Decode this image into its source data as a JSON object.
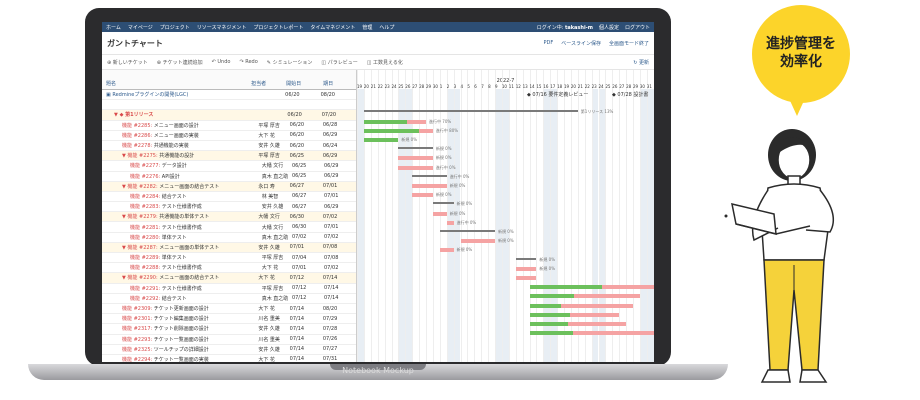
{
  "mockup_label": "Notebook Mockup",
  "bubble": {
    "line1": "進捗管理を",
    "line2": "効率化"
  },
  "topbar": {
    "items": [
      "ホーム",
      "マイページ",
      "プロジェクト",
      "リソースマネジメント",
      "プロジェクトレポート",
      "タイムマネジメント",
      "管理",
      "ヘルプ"
    ],
    "login_label": "ログイン中:",
    "user": "takashi-m",
    "settings": "個人設定",
    "logout": "ログアウト"
  },
  "title": "ガントチャート",
  "title_actions": [
    "PDF",
    "ベースライン保存",
    "全画面モード終了"
  ],
  "toolbar": [
    "新しいチケット",
    "チケット連続追加",
    "Undo",
    "Redo",
    "シミュレーション",
    "パラレビュー",
    "工数見える化"
  ],
  "update_label": "更新",
  "columns": {
    "name": "題名",
    "user": "担当者",
    "start": "開始日",
    "end": "期日"
  },
  "month": "2022-7",
  "days": [
    "19",
    "20",
    "21",
    "22",
    "23",
    "24",
    "25",
    "26",
    "27",
    "28",
    "29",
    "30",
    "1",
    "2",
    "3",
    "4",
    "5",
    "6",
    "7",
    "8",
    "9",
    "10",
    "11",
    "12",
    "13",
    "14",
    "15",
    "16",
    "17",
    "18",
    "19",
    "20",
    "21",
    "22",
    "23",
    "24",
    "25",
    "26",
    "27",
    "28",
    "29",
    "30",
    "31"
  ],
  "milestones": [
    "07/16 要件定義レビュー",
    "07/28 設計書"
  ],
  "rows": [
    {
      "indent": 0,
      "kind": "project",
      "name": "Redmineプラグインの開発(LGC)",
      "user": "",
      "start": "06/20",
      "end": "08/20"
    },
    {
      "indent": 0,
      "kind": "blank",
      "name": "",
      "user": "",
      "start": "",
      "end": ""
    },
    {
      "indent": 1,
      "kind": "version",
      "name": "第1リリース",
      "user": "",
      "start": "06/20",
      "end": "07/20"
    },
    {
      "indent": 2,
      "kind": "issue",
      "tracker": "機能 #2285:",
      "name": "メニュー画面の設計",
      "user": "平塚 厚吉",
      "start": "06/20",
      "end": "06/28"
    },
    {
      "indent": 2,
      "kind": "issue",
      "tracker": "機能 #2286:",
      "name": "メニュー画面の実装",
      "user": "大下 花",
      "start": "06/20",
      "end": "06/29"
    },
    {
      "indent": 2,
      "kind": "issue",
      "tracker": "機能 #2278:",
      "name": "共通機能の実装",
      "user": "安井 久雄",
      "start": "06/20",
      "end": "06/24"
    },
    {
      "indent": 2,
      "kind": "parent",
      "tracker": "機能 #2275:",
      "name": "共通機能の設計",
      "user": "平塚 厚吉",
      "start": "06/25",
      "end": "06/29"
    },
    {
      "indent": 3,
      "kind": "issue",
      "tracker": "機能 #2277:",
      "name": "データ設計",
      "user": "大幡 文行",
      "start": "06/25",
      "end": "06/29"
    },
    {
      "indent": 3,
      "kind": "issue",
      "tracker": "機能 #2276:",
      "name": "API設計",
      "user": "真木 直之助",
      "start": "06/25",
      "end": "06/29"
    },
    {
      "indent": 2,
      "kind": "parent",
      "tracker": "機能 #2282:",
      "name": "メニュー画面の結合テスト",
      "user": "永口 寿",
      "start": "06/27",
      "end": "07/01"
    },
    {
      "indent": 3,
      "kind": "issue",
      "tracker": "機能 #2284:",
      "name": "結合テスト",
      "user": "林 美智",
      "start": "06/27",
      "end": "07/01"
    },
    {
      "indent": 3,
      "kind": "issue",
      "tracker": "機能 #2283:",
      "name": "テスト仕様書作成",
      "user": "安井 久雄",
      "start": "06/27",
      "end": "06/29"
    },
    {
      "indent": 2,
      "kind": "parent",
      "tracker": "機能 #2279:",
      "name": "共通機能の単体テスト",
      "user": "大幡 文行",
      "start": "06/30",
      "end": "07/02"
    },
    {
      "indent": 3,
      "kind": "issue",
      "tracker": "機能 #2281:",
      "name": "テスト仕様書作成",
      "user": "大幡 文行",
      "start": "06/30",
      "end": "07/01"
    },
    {
      "indent": 3,
      "kind": "issue",
      "tracker": "機能 #2280:",
      "name": "単体テスト",
      "user": "真木 直之助",
      "start": "07/02",
      "end": "07/02"
    },
    {
      "indent": 2,
      "kind": "parent",
      "tracker": "機能 #2287:",
      "name": "メニュー画面の単体テスト",
      "user": "安井 久雄",
      "start": "07/01",
      "end": "07/08"
    },
    {
      "indent": 3,
      "kind": "issue",
      "tracker": "機能 #2289:",
      "name": "単体テスト",
      "user": "平塚 厚吉",
      "start": "07/04",
      "end": "07/08"
    },
    {
      "indent": 3,
      "kind": "issue",
      "tracker": "機能 #2288:",
      "name": "テスト仕様書作成",
      "user": "大下 花",
      "start": "07/01",
      "end": "07/02"
    },
    {
      "indent": 2,
      "kind": "parent",
      "tracker": "機能 #2290:",
      "name": "メニュー画面の結合テスト",
      "user": "大下 花",
      "start": "07/12",
      "end": "07/14"
    },
    {
      "indent": 3,
      "kind": "issue",
      "tracker": "機能 #2291:",
      "name": "テスト仕様書作成",
      "user": "平塚 厚吉",
      "start": "07/12",
      "end": "07/14"
    },
    {
      "indent": 3,
      "kind": "issue",
      "tracker": "機能 #2292:",
      "name": "結合テスト",
      "user": "真木 直之助",
      "start": "07/12",
      "end": "07/14"
    },
    {
      "indent": 2,
      "kind": "issue",
      "tracker": "機能 #2309:",
      "name": "チケット更新画面の設計",
      "user": "大下 花",
      "start": "07/14",
      "end": "08/20"
    },
    {
      "indent": 2,
      "kind": "issue",
      "tracker": "機能 #2301:",
      "name": "チケット編集画面の設計",
      "user": "川名 重美",
      "start": "07/14",
      "end": "07/29"
    },
    {
      "indent": 2,
      "kind": "issue",
      "tracker": "機能 #2317:",
      "name": "チケット削除画面の設計",
      "user": "安井 久雄",
      "start": "07/14",
      "end": "07/28"
    },
    {
      "indent": 2,
      "kind": "issue",
      "tracker": "機能 #2293:",
      "name": "チケット一覧画面の設計",
      "user": "川名 重美",
      "start": "07/14",
      "end": "07/26"
    },
    {
      "indent": 2,
      "kind": "issue",
      "tracker": "機能 #2325:",
      "name": "ツールチップの詳細設計",
      "user": "安井 久雄",
      "start": "07/14",
      "end": "07/27"
    },
    {
      "indent": 2,
      "kind": "issue",
      "tracker": "機能 #2294:",
      "name": "チケット一覧画面の実装",
      "user": "大下 花",
      "start": "07/14",
      "end": "07/31"
    }
  ],
  "bar_labels": [
    "第1リリース 13%",
    "進行中 70%",
    "進行中 80%",
    "新規 0%",
    "新規 0%",
    "新規 0%",
    "進行中 0%",
    "進行中 0%",
    "新規 0%",
    "新規 0%",
    "新規 0%",
    "新規 0%",
    "進行中 0%",
    "新規 0%",
    "新規 0%",
    "新規 0%",
    "新規 0%",
    "新規 0%"
  ],
  "colors": {
    "topbar": "#2d4e74",
    "done": "#6cc05c",
    "todo": "#f5a3a3",
    "accent": "#2d5a8c",
    "bubble": "#fcd42a"
  }
}
